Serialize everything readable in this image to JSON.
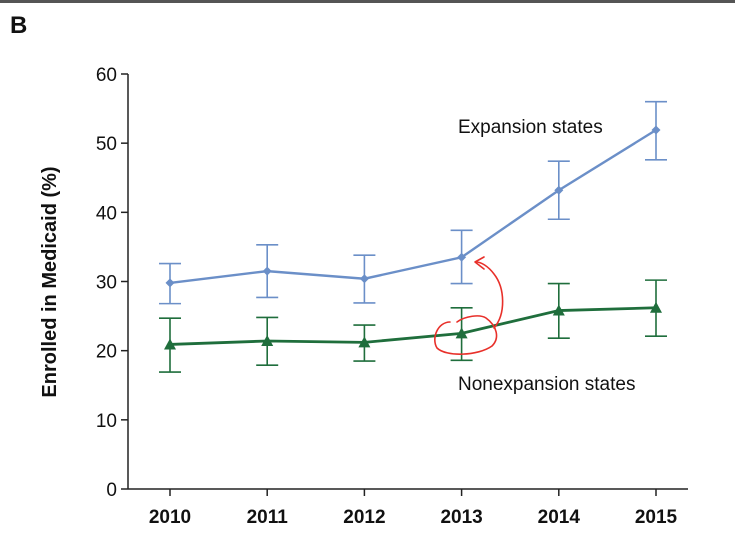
{
  "panel_label": "B",
  "colors": {
    "expansion": "#6b8fc8",
    "nonexpansion": "#1f6e3c",
    "annotation": "#e8302a",
    "axis": "#222222"
  },
  "chart_data": {
    "type": "line",
    "title": "",
    "xlabel": "",
    "ylabel": "Enrolled in Medicaid (%)",
    "x": [
      2010,
      2011,
      2012,
      2013,
      2014,
      2015
    ],
    "x_tick_labels": [
      "2010",
      "2011",
      "2012",
      "2013",
      "2014",
      "2015"
    ],
    "ylim": [
      0,
      60
    ],
    "y_ticks": [
      0,
      10,
      20,
      30,
      40,
      50,
      60
    ],
    "y_tick_labels": [
      "0",
      "10",
      "20",
      "30",
      "40",
      "50",
      "60"
    ],
    "grid": false,
    "series": [
      {
        "name": "Expansion states",
        "marker": "diamond",
        "values": [
          29.8,
          31.5,
          30.4,
          33.5,
          43.2,
          51.9
        ],
        "error_low": [
          26.8,
          27.7,
          26.9,
          29.7,
          39.0,
          47.6
        ],
        "error_high": [
          32.6,
          35.3,
          33.8,
          37.4,
          47.4,
          56.0
        ]
      },
      {
        "name": "Nonexpansion states",
        "marker": "triangle",
        "values": [
          20.9,
          21.4,
          21.2,
          22.5,
          25.8,
          26.2
        ],
        "error_low": [
          16.9,
          17.9,
          18.5,
          18.6,
          21.8,
          22.1
        ],
        "error_high": [
          24.7,
          24.8,
          23.7,
          26.2,
          29.7,
          30.2
        ]
      }
    ],
    "annotations": [
      {
        "type": "hand-drawn-circle",
        "x": 2013,
        "y": 22.5
      },
      {
        "type": "hand-drawn-arrow",
        "from": [
          2013.3,
          23
        ],
        "to": [
          2013.1,
          33.5
        ]
      }
    ]
  }
}
